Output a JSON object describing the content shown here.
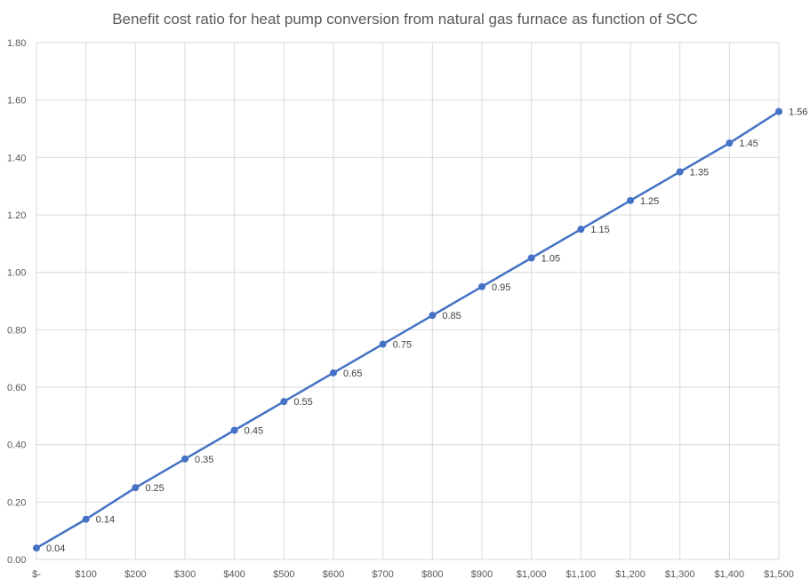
{
  "chart_data": {
    "type": "line",
    "title": "Benefit cost ratio for heat pump conversion from natural gas furnace as function of SCC",
    "xlabel": "",
    "ylabel": "",
    "categories": [
      "$-",
      "$100",
      "$200",
      "$300",
      "$400",
      "$500",
      "$600",
      "$700",
      "$800",
      "$900",
      "$1,000",
      "$1,100",
      "$1,200",
      "$1,300",
      "$1,400",
      "$1,500"
    ],
    "x": [
      0,
      100,
      200,
      300,
      400,
      500,
      600,
      700,
      800,
      900,
      1000,
      1100,
      1200,
      1300,
      1400,
      1500
    ],
    "series": [
      {
        "values": [
          0.04,
          0.14,
          0.25,
          0.35,
          0.45,
          0.55,
          0.65,
          0.75,
          0.85,
          0.95,
          1.05,
          1.15,
          1.25,
          1.35,
          1.45,
          1.56
        ],
        "labels": [
          "0.04",
          "0.14",
          "0.25",
          "0.35",
          "0.45",
          "0.55",
          "0.65",
          "0.75",
          "0.85",
          "0.95",
          "1.05",
          "1.15",
          "1.25",
          "1.35",
          "1.45",
          "1.56"
        ],
        "color": "#4472c4"
      }
    ],
    "ylim": [
      0,
      1.8
    ],
    "yticks": [
      "0.00",
      "0.20",
      "0.40",
      "0.60",
      "0.80",
      "1.00",
      "1.20",
      "1.40",
      "1.60",
      "1.80"
    ],
    "grid": true,
    "legend": "none",
    "gridline_color": "#d9d9d9"
  }
}
